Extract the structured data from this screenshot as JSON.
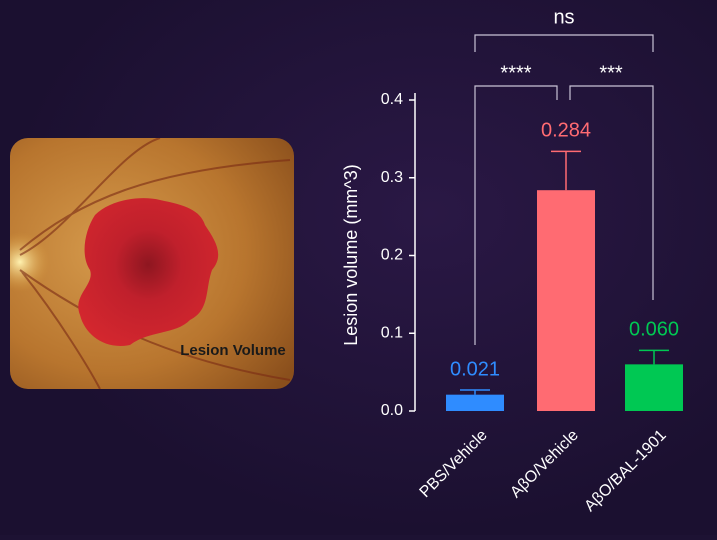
{
  "image": {
    "label": "Lesion Volume"
  },
  "chart_data": {
    "type": "bar",
    "y_label": "Lesion volume (mm^3)",
    "categories": [
      "PBS/Vehicle",
      "AβO/Vehicle",
      "AβO/BAL-1901"
    ],
    "values": [
      0.021,
      0.284,
      0.06
    ],
    "value_labels": [
      "0.021",
      "0.284",
      "0.060"
    ],
    "errors": [
      0.006,
      0.05,
      0.018
    ],
    "colors": [
      "#2f8cff",
      "#ff6b72",
      "#00c853"
    ],
    "ylim": [
      0,
      0.4
    ],
    "yticks": [
      {
        "value": 0,
        "label": "0.0"
      },
      0.1,
      0.2,
      0.3,
      0.4
    ],
    "annotations": [
      {
        "text": "****"
      },
      {
        "text": "***"
      },
      {
        "text": "ns"
      }
    ]
  }
}
